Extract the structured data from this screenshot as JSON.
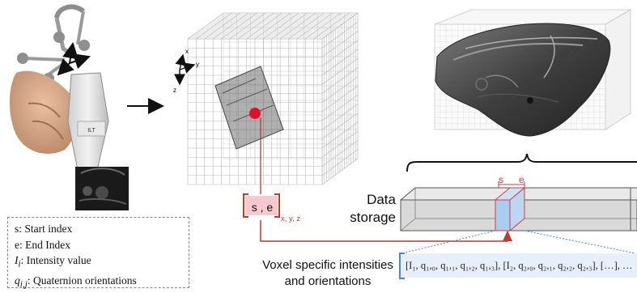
{
  "legend": {
    "line1": "s: Start index",
    "line2": "e: End Index",
    "line3_symbol": "I",
    "line3_sub": "i",
    "line3_text": ": Intensity value",
    "line4_symbol": "q",
    "line4_sub": "i,j",
    "line4_text": ": Quaternion orientations"
  },
  "axes": {
    "x": "x",
    "y": "y",
    "z": "z"
  },
  "index_pair": "s , e",
  "index_pair_subscript": "x, y, z",
  "storage": {
    "label_line1": "Data",
    "label_line2": "storage",
    "start_mark": "s",
    "end_mark": "e"
  },
  "voxel_caption": {
    "line1": "Voxel specific intensities",
    "line2": "and orientations"
  },
  "sequence": "[I₁, q₁,₀, q₁,₁, q₁,₂, q₁,₃], [I₂, q₂,₀, q₂,₁, q₂,₂, q₂,₃], […], …",
  "colors": {
    "accent_red": "#c0392b",
    "pink_fill": "#f6c9cf",
    "cube_blue": "#a9cdee",
    "dotted_blue": "#4a86c8",
    "storage_grey": "#d9d9d9",
    "grid_line": "#b8b8b8"
  },
  "icons": {
    "probe": "ultrasound-probe-icon",
    "arrow": "right-arrow-icon",
    "grid": "voxel-grid-icon",
    "volume": "3d-volume-render-icon",
    "bracket": "curly-bracket-icon"
  }
}
